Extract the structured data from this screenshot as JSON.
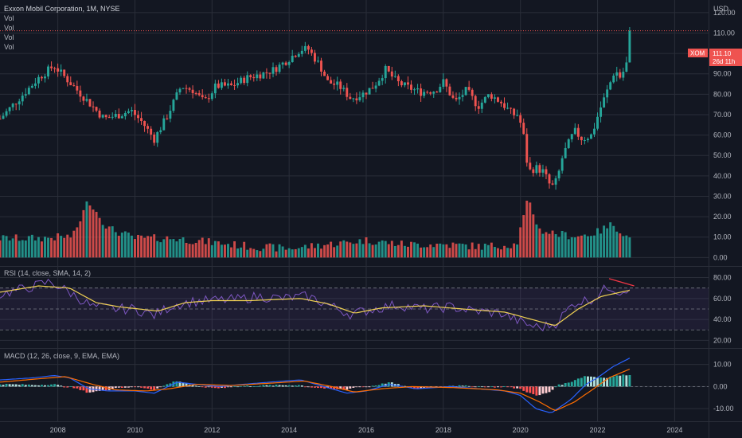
{
  "header": {
    "title": "Exxon Mobil Corporation, 1M, NYSE",
    "vol_labels": [
      "Vol",
      "Vol",
      "Vol",
      "Vol"
    ],
    "currency": "USD"
  },
  "price_tag": {
    "symbol": "XOM",
    "price": "111.10",
    "countdown": "26d 11h"
  },
  "panes": {
    "rsi_title": "RSI (14, close, SMA, 14, 2)",
    "macd_title": "MACD (12, 26, close, 9, EMA, EMA)"
  },
  "colors": {
    "up": "#26a69a",
    "down": "#ef5350",
    "rsi_line": "#7e57c2",
    "rsi_sma": "#f0d153",
    "macd_line": "#2962ff",
    "signal_line": "#ff6d00",
    "divergence": "#f23645",
    "grid": "#2a2e39",
    "text": "#b2b5be",
    "bg": "#131722"
  },
  "chart_data": {
    "type": "candlestick",
    "symbol": "XOM",
    "interval": "1M",
    "exchange": "NYSE",
    "price_axis": {
      "ticks": [
        "120.00",
        "110.00",
        "100.00",
        "90.00",
        "80.00",
        "70.00",
        "60.00",
        "50.00",
        "40.00",
        "30.00",
        "20.00",
        "10.00",
        "0.00"
      ],
      "range": [
        -3,
        125
      ]
    },
    "time_axis": {
      "ticks": [
        "2008",
        "2010",
        "2012",
        "2014",
        "2016",
        "2018",
        "2020",
        "2022",
        "2024"
      ],
      "range": [
        2006.5,
        2024.88
      ]
    },
    "price_anchors": [
      [
        2006.5,
        68
      ],
      [
        2007.0,
        78
      ],
      [
        2007.5,
        88
      ],
      [
        2007.9,
        94
      ],
      [
        2008.3,
        86
      ],
      [
        2008.6,
        80
      ],
      [
        2008.9,
        74
      ],
      [
        2009.2,
        68
      ],
      [
        2009.6,
        70
      ],
      [
        2009.9,
        72
      ],
      [
        2010.2,
        66
      ],
      [
        2010.5,
        58
      ],
      [
        2010.8,
        68
      ],
      [
        2011.2,
        84
      ],
      [
        2011.5,
        82
      ],
      [
        2011.8,
        76
      ],
      [
        2012.1,
        84
      ],
      [
        2012.5,
        84
      ],
      [
        2012.9,
        88
      ],
      [
        2013.3,
        90
      ],
      [
        2013.6,
        92
      ],
      [
        2013.9,
        96
      ],
      [
        2014.3,
        102
      ],
      [
        2014.5,
        102
      ],
      [
        2014.8,
        94
      ],
      [
        2015.0,
        86
      ],
      [
        2015.3,
        84
      ],
      [
        2015.6,
        78
      ],
      [
        2015.9,
        80
      ],
      [
        2016.2,
        84
      ],
      [
        2016.5,
        92
      ],
      [
        2016.8,
        86
      ],
      [
        2017.0,
        84
      ],
      [
        2017.4,
        81
      ],
      [
        2017.8,
        82
      ],
      [
        2018.0,
        86
      ],
      [
        2018.3,
        76
      ],
      [
        2018.6,
        82
      ],
      [
        2018.9,
        74
      ],
      [
        2019.2,
        80
      ],
      [
        2019.5,
        76
      ],
      [
        2019.8,
        70
      ],
      [
        2019.95,
        70
      ],
      [
        2020.1,
        58
      ],
      [
        2020.2,
        42
      ],
      [
        2020.4,
        44
      ],
      [
        2020.6,
        42
      ],
      [
        2020.8,
        34
      ],
      [
        2020.95,
        38
      ],
      [
        2021.1,
        50
      ],
      [
        2021.4,
        62
      ],
      [
        2021.6,
        58
      ],
      [
        2021.85,
        60
      ],
      [
        2022.05,
        72
      ],
      [
        2022.3,
        84
      ],
      [
        2022.45,
        92
      ],
      [
        2022.6,
        88
      ],
      [
        2022.75,
        95
      ],
      [
        2022.85,
        111.1
      ]
    ],
    "volume_anchors": [
      [
        2006.5,
        9
      ],
      [
        2007.5,
        9
      ],
      [
        2008.4,
        10
      ],
      [
        2008.8,
        28
      ],
      [
        2009.0,
        22
      ],
      [
        2009.3,
        14
      ],
      [
        2010.0,
        9
      ],
      [
        2011.0,
        9
      ],
      [
        2012.0,
        7
      ],
      [
        2013.0,
        5
      ],
      [
        2014.0,
        4
      ],
      [
        2015.0,
        6
      ],
      [
        2016.0,
        8
      ],
      [
        2017.0,
        6
      ],
      [
        2018.0,
        6
      ],
      [
        2019.0,
        5
      ],
      [
        2019.9,
        6
      ],
      [
        2020.2,
        28
      ],
      [
        2020.5,
        13
      ],
      [
        2021.0,
        11
      ],
      [
        2021.5,
        10
      ],
      [
        2022.0,
        12
      ],
      [
        2022.4,
        16
      ],
      [
        2022.8,
        9
      ]
    ],
    "rsi_axis": {
      "ticks": [
        "80.00",
        "60.00",
        "40.00",
        "20.00"
      ],
      "range": [
        15,
        88
      ],
      "bands": [
        70,
        50,
        30
      ]
    },
    "rsi_anchors": [
      [
        2006.5,
        64
      ],
      [
        2007.2,
        70
      ],
      [
        2007.8,
        76
      ],
      [
        2008.3,
        66
      ],
      [
        2008.9,
        52
      ],
      [
        2009.5,
        50
      ],
      [
        2010.0,
        50
      ],
      [
        2010.5,
        44
      ],
      [
        2011.0,
        54
      ],
      [
        2011.5,
        57
      ],
      [
        2012.0,
        58
      ],
      [
        2012.6,
        59
      ],
      [
        2013.2,
        62
      ],
      [
        2013.8,
        60
      ],
      [
        2014.5,
        62
      ],
      [
        2015.0,
        54
      ],
      [
        2015.6,
        45
      ],
      [
        2016.2,
        50
      ],
      [
        2016.8,
        54
      ],
      [
        2017.5,
        50
      ],
      [
        2018.2,
        52
      ],
      [
        2018.8,
        48
      ],
      [
        2019.5,
        46
      ],
      [
        2020.1,
        36
      ],
      [
        2020.5,
        32
      ],
      [
        2020.9,
        36
      ],
      [
        2021.4,
        56
      ],
      [
        2021.9,
        60
      ],
      [
        2022.3,
        72
      ],
      [
        2022.6,
        66
      ],
      [
        2022.85,
        72
      ]
    ],
    "rsi_sma_anchors": [
      [
        2006.5,
        66
      ],
      [
        2007.5,
        72
      ],
      [
        2008.3,
        70
      ],
      [
        2009.0,
        56
      ],
      [
        2009.6,
        52
      ],
      [
        2010.6,
        48
      ],
      [
        2011.3,
        56
      ],
      [
        2012.0,
        58
      ],
      [
        2013.0,
        58
      ],
      [
        2014.3,
        60
      ],
      [
        2015.0,
        55
      ],
      [
        2015.7,
        46
      ],
      [
        2016.4,
        51
      ],
      [
        2017.5,
        53
      ],
      [
        2018.5,
        50
      ],
      [
        2019.6,
        47
      ],
      [
        2020.3,
        40
      ],
      [
        2020.9,
        34
      ],
      [
        2021.5,
        50
      ],
      [
        2022.1,
        62
      ],
      [
        2022.85,
        68
      ]
    ],
    "macd_axis": {
      "ticks": [
        "10.00",
        "0.00",
        "-10.00"
      ],
      "range": [
        -15,
        16
      ]
    },
    "macd_anchors": [
      [
        2006.5,
        3
      ],
      [
        2007.4,
        4
      ],
      [
        2007.9,
        5
      ],
      [
        2008.3,
        4
      ],
      [
        2008.8,
        -1
      ],
      [
        2009.3,
        -2
      ],
      [
        2010.0,
        -2
      ],
      [
        2010.5,
        -3
      ],
      [
        2011.1,
        2
      ],
      [
        2011.6,
        1
      ],
      [
        2012.2,
        0
      ],
      [
        2012.8,
        1
      ],
      [
        2013.5,
        2
      ],
      [
        2014.3,
        3
      ],
      [
        2014.9,
        0
      ],
      [
        2015.5,
        -3
      ],
      [
        2016.0,
        -2
      ],
      [
        2016.6,
        1
      ],
      [
        2017.3,
        -1
      ],
      [
        2018.2,
        0
      ],
      [
        2018.9,
        -1
      ],
      [
        2019.6,
        -2
      ],
      [
        2020.0,
        -4
      ],
      [
        2020.4,
        -10
      ],
      [
        2020.8,
        -12
      ],
      [
        2021.3,
        -6
      ],
      [
        2021.7,
        1
      ],
      [
        2022.0,
        4
      ],
      [
        2022.4,
        9
      ],
      [
        2022.85,
        13
      ]
    ],
    "signal_anchors": [
      [
        2006.5,
        2
      ],
      [
        2007.5,
        3.5
      ],
      [
        2008.2,
        4.5
      ],
      [
        2008.9,
        1
      ],
      [
        2009.5,
        -1.5
      ],
      [
        2010.3,
        -2
      ],
      [
        2010.9,
        -1
      ],
      [
        2011.6,
        1
      ],
      [
        2012.5,
        0.5
      ],
      [
        2013.5,
        1.5
      ],
      [
        2014.4,
        2.5
      ],
      [
        2015.1,
        0
      ],
      [
        2015.7,
        -2.5
      ],
      [
        2016.4,
        -1
      ],
      [
        2017.2,
        0
      ],
      [
        2018.3,
        -0.5
      ],
      [
        2019.4,
        -1.5
      ],
      [
        2020.0,
        -3
      ],
      [
        2020.5,
        -7
      ],
      [
        2020.9,
        -11
      ],
      [
        2021.4,
        -7
      ],
      [
        2021.9,
        -1
      ],
      [
        2022.3,
        4
      ],
      [
        2022.85,
        8
      ]
    ],
    "legend": "none",
    "grid": true
  }
}
